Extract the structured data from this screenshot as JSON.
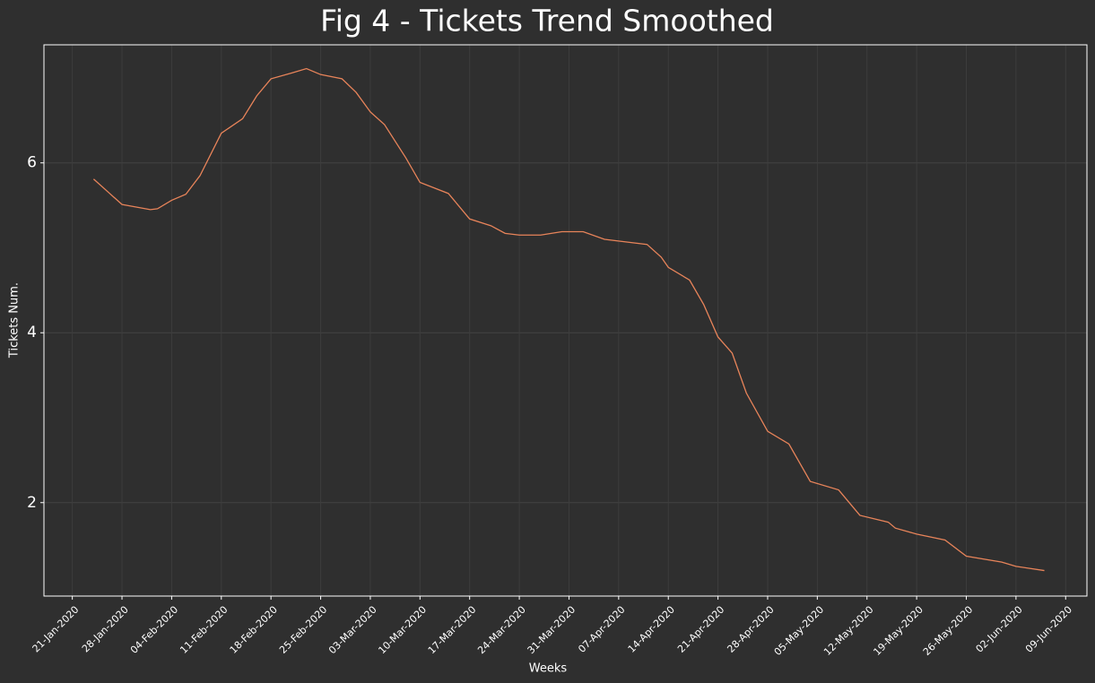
{
  "chart_data": {
    "type": "line",
    "title": "Fig 4 - Tickets Trend Smoothed",
    "xlabel": "Weeks",
    "ylabel": "Tickets Num.",
    "x": [
      "2020-01-24",
      "2020-01-26",
      "2020-01-28",
      "2020-01-30",
      "2020-02-01",
      "2020-02-02",
      "2020-02-04",
      "2020-02-06",
      "2020-02-08",
      "2020-02-11",
      "2020-02-14",
      "2020-02-16",
      "2020-02-18",
      "2020-02-21",
      "2020-02-23",
      "2020-02-25",
      "2020-02-28",
      "2020-03-01",
      "2020-03-03",
      "2020-03-05",
      "2020-03-08",
      "2020-03-10",
      "2020-03-14",
      "2020-03-17",
      "2020-03-20",
      "2020-03-22",
      "2020-03-24",
      "2020-03-27",
      "2020-03-30",
      "2020-04-02",
      "2020-04-05",
      "2020-04-08",
      "2020-04-11",
      "2020-04-13",
      "2020-04-14",
      "2020-04-17",
      "2020-04-19",
      "2020-04-21",
      "2020-04-23",
      "2020-04-25",
      "2020-04-28",
      "2020-05-01",
      "2020-05-04",
      "2020-05-08",
      "2020-05-11",
      "2020-05-15",
      "2020-05-16",
      "2020-05-19",
      "2020-05-23",
      "2020-05-26",
      "2020-05-31",
      "2020-06-02",
      "2020-06-06"
    ],
    "series": [
      {
        "name": "Tickets",
        "color": "#e8845a",
        "values": [
          5.81,
          5.66,
          5.51,
          5.48,
          5.45,
          5.46,
          5.56,
          5.63,
          5.85,
          6.35,
          6.52,
          6.79,
          6.99,
          7.06,
          7.11,
          7.04,
          6.99,
          6.83,
          6.6,
          6.45,
          6.06,
          5.77,
          5.64,
          5.34,
          5.26,
          5.17,
          5.15,
          5.15,
          5.19,
          5.19,
          5.1,
          5.07,
          5.04,
          4.89,
          4.77,
          4.62,
          4.33,
          3.95,
          3.76,
          3.29,
          2.84,
          2.69,
          2.25,
          2.15,
          1.85,
          1.77,
          1.7,
          1.63,
          1.56,
          1.37,
          1.3,
          1.25,
          1.2
        ]
      }
    ],
    "xlim": [
      "2020-01-17",
      "2020-06-12"
    ],
    "xticks": [
      {
        "value": "2020-01-21",
        "label": "21-Jan-2020"
      },
      {
        "value": "2020-01-28",
        "label": "28-Jan-2020"
      },
      {
        "value": "2020-02-04",
        "label": "04-Feb-2020"
      },
      {
        "value": "2020-02-11",
        "label": "11-Feb-2020"
      },
      {
        "value": "2020-02-18",
        "label": "18-Feb-2020"
      },
      {
        "value": "2020-02-25",
        "label": "25-Feb-2020"
      },
      {
        "value": "2020-03-03",
        "label": "03-Mar-2020"
      },
      {
        "value": "2020-03-10",
        "label": "10-Mar-2020"
      },
      {
        "value": "2020-03-17",
        "label": "17-Mar-2020"
      },
      {
        "value": "2020-03-24",
        "label": "24-Mar-2020"
      },
      {
        "value": "2020-03-31",
        "label": "31-Mar-2020"
      },
      {
        "value": "2020-04-07",
        "label": "07-Apr-2020"
      },
      {
        "value": "2020-04-14",
        "label": "14-Apr-2020"
      },
      {
        "value": "2020-04-21",
        "label": "21-Apr-2020"
      },
      {
        "value": "2020-04-28",
        "label": "28-Apr-2020"
      },
      {
        "value": "2020-05-05",
        "label": "05-May-2020"
      },
      {
        "value": "2020-05-12",
        "label": "12-May-2020"
      },
      {
        "value": "2020-05-19",
        "label": "19-May-2020"
      },
      {
        "value": "2020-05-26",
        "label": "26-May-2020"
      },
      {
        "value": "2020-06-02",
        "label": "02-Jun-2020"
      },
      {
        "value": "2020-06-09",
        "label": "09-Jun-2020"
      }
    ],
    "ylim": [
      0.9,
      7.39
    ],
    "yticks": [
      2,
      4,
      6
    ],
    "grid": true
  }
}
